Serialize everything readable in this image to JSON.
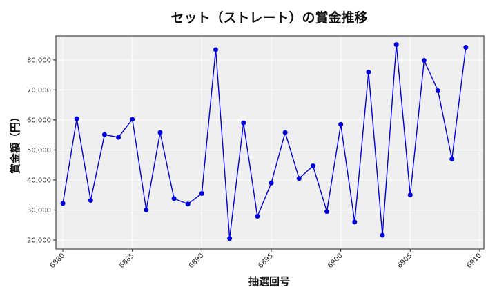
{
  "chart_data": {
    "type": "line",
    "title": "セット（ストレート）の賞金推移",
    "xlabel": "抽選回号",
    "ylabel": "賞金額（円）",
    "x": [
      6880,
      6881,
      6882,
      6883,
      6884,
      6885,
      6886,
      6887,
      6888,
      6889,
      6890,
      6891,
      6892,
      6893,
      6894,
      6895,
      6896,
      6897,
      6898,
      6899,
      6900,
      6901,
      6902,
      6903,
      6904,
      6905,
      6906,
      6907,
      6908,
      6909
    ],
    "series": [
      {
        "values": [
          32200,
          60400,
          33200,
          55100,
          54200,
          60200,
          30000,
          55800,
          33800,
          32000,
          35500,
          83400,
          20500,
          59000,
          27900,
          39000,
          55800,
          40500,
          44700,
          29500,
          58500,
          26000,
          75900,
          21600,
          85100,
          35000,
          79800,
          69700,
          47000,
          84200
        ],
        "color": "#0000dd"
      }
    ],
    "xlim": [
      6879.5,
      6910.3
    ],
    "ylim": [
      17000,
      88000
    ],
    "x_ticks": [
      6880,
      6885,
      6890,
      6895,
      6900,
      6905,
      6910
    ],
    "x_tick_labels": [
      "6880",
      "6885",
      "6890",
      "6895",
      "6900",
      "6905",
      "6910"
    ],
    "y_ticks": [
      20000,
      30000,
      40000,
      50000,
      60000,
      70000,
      80000
    ],
    "y_tick_labels": [
      "20,000",
      "30,000",
      "40,000",
      "50,000",
      "60,000",
      "70,000",
      "80,000"
    ],
    "grid": true,
    "plot_background": "#efefef"
  }
}
